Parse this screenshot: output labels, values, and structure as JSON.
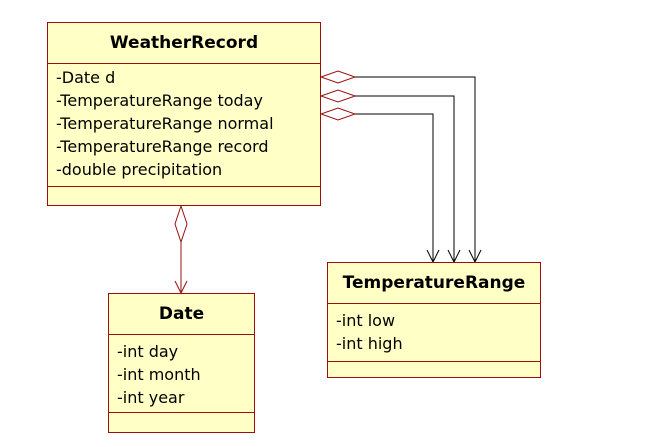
{
  "diagram": {
    "classes": {
      "weather_record": {
        "name": "WeatherRecord",
        "attributes": [
          "-Date d",
          "-TemperatureRange today",
          "-TemperatureRange normal",
          "-TemperatureRange record",
          "-double precipitation"
        ]
      },
      "date": {
        "name": "Date",
        "attributes": [
          "-int day",
          "-int month",
          "-int year"
        ]
      },
      "temperature_range": {
        "name": "TemperatureRange",
        "attributes": [
          "-int low",
          "-int high"
        ]
      }
    },
    "relationships": [
      {
        "type": "aggregation",
        "from": "WeatherRecord",
        "to": "Date"
      },
      {
        "type": "aggregation",
        "from": "WeatherRecord",
        "to": "TemperatureRange"
      },
      {
        "type": "aggregation",
        "from": "WeatherRecord",
        "to": "TemperatureRange"
      },
      {
        "type": "aggregation",
        "from": "WeatherRecord",
        "to": "TemperatureRange"
      }
    ],
    "colors": {
      "class_fill": "#ffffc6",
      "class_border": "#9a1010",
      "connector": "#000000",
      "diamond": "#9a1010"
    }
  }
}
